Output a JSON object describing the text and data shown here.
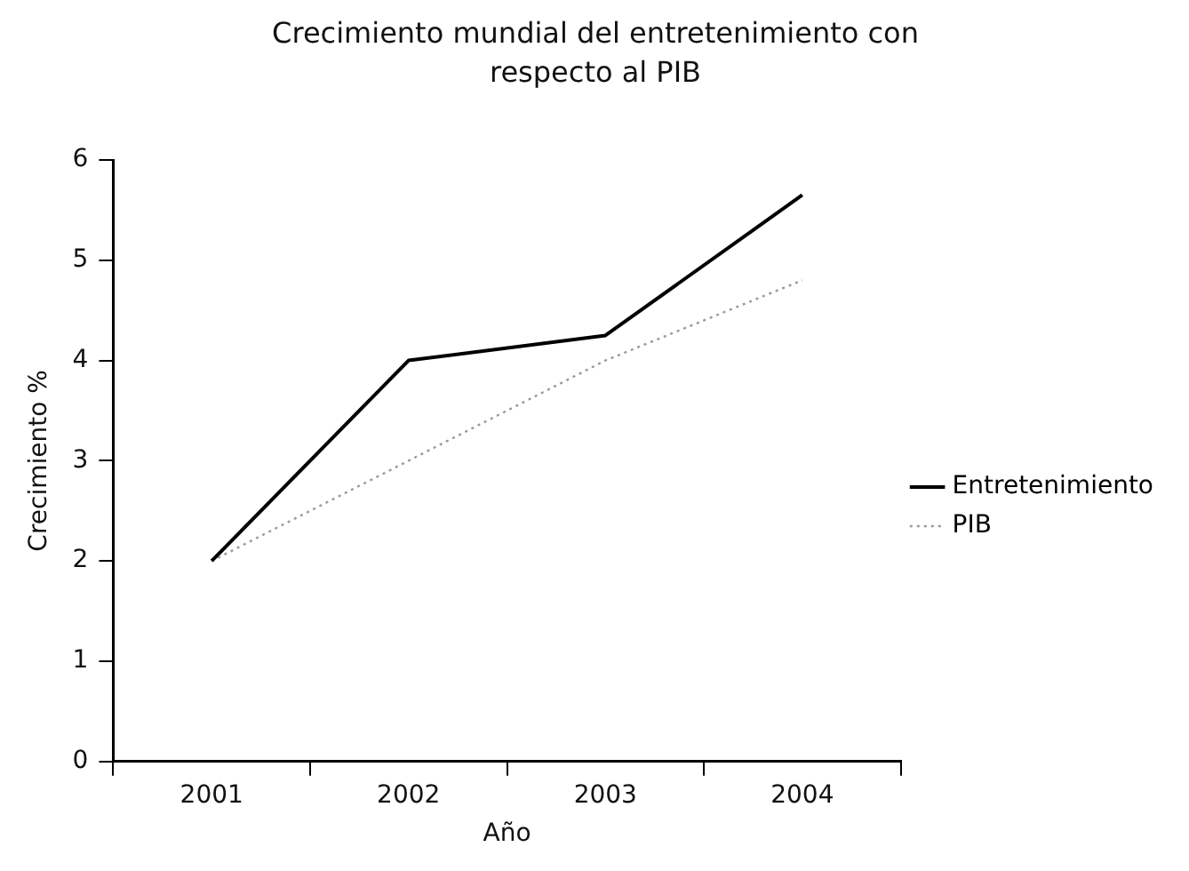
{
  "chart_data": {
    "type": "line",
    "title": "Crecimiento mundial del entretenimiento con respecto al PIB",
    "xlabel": "Año",
    "ylabel": "Crecimiento %",
    "categories": [
      "2001",
      "2002",
      "2003",
      "2004"
    ],
    "series": [
      {
        "name": "Entretenimiento",
        "color": "#000000",
        "values": [
          2,
          4,
          4.25,
          5.65
        ]
      },
      {
        "name": "PIB",
        "color": "#999999",
        "line_style": "dotted",
        "values": [
          2,
          3,
          4,
          4.8
        ]
      }
    ],
    "ylim": [
      0,
      6
    ],
    "yticks": [
      0,
      1,
      2,
      3,
      4,
      5,
      6
    ],
    "grid": false,
    "legend": "right",
    "marker": "none",
    "line_style": "solid"
  }
}
